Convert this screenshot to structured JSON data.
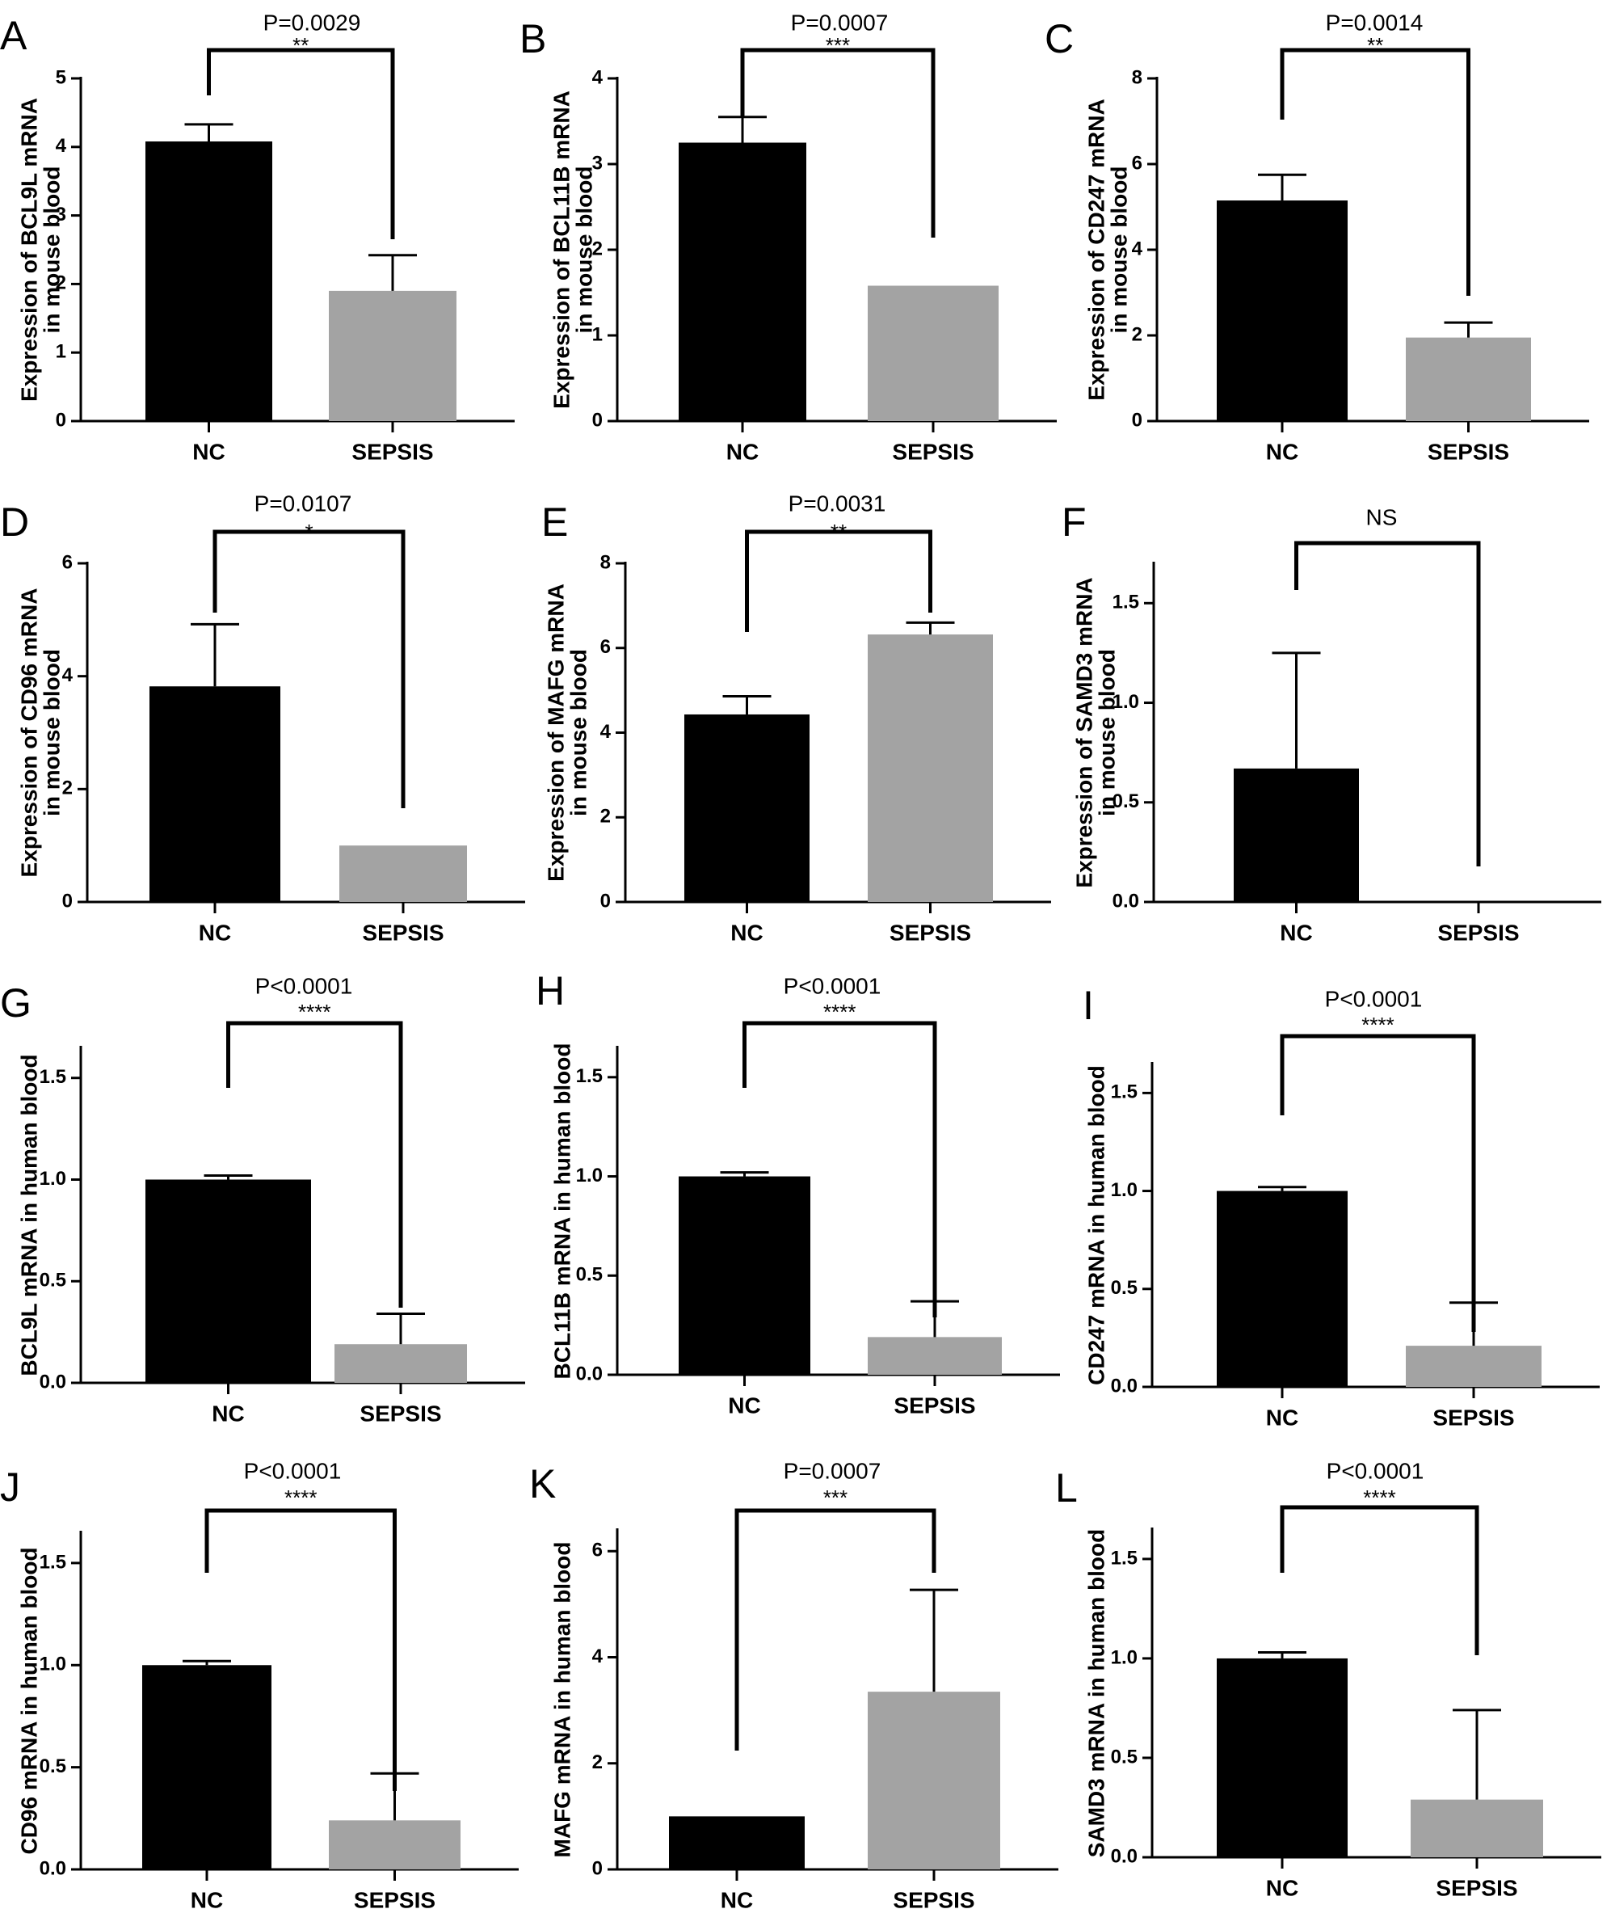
{
  "chart_data": [
    {
      "panel": "A",
      "type": "bar",
      "ylabel_lines": [
        "Expression of BCL9L mRNA",
        "in mouse blood"
      ],
      "categories": [
        "NC",
        "SEPSIS"
      ],
      "values": [
        4.08,
        1.9
      ],
      "errors": [
        0.25,
        0.52
      ],
      "ylim": [
        0,
        5
      ],
      "yticks": [
        "0",
        "1",
        "2",
        "3",
        "4",
        "5"
      ],
      "pvalue": "P=0.0029",
      "stars": "**",
      "colors": [
        "#000000",
        "#a3a3a3"
      ]
    },
    {
      "panel": "B",
      "type": "bar",
      "ylabel_lines": [
        "Expression of BCL11B mRNA",
        "in mouse blood"
      ],
      "categories": [
        "NC",
        "SEPSIS"
      ],
      "values": [
        3.25,
        1.58
      ],
      "errors": [
        0.3,
        0.0
      ],
      "ylim": [
        0,
        4
      ],
      "yticks": [
        "0",
        "1",
        "2",
        "3",
        "4"
      ],
      "pvalue": "P=0.0007",
      "stars": "***",
      "colors": [
        "#000000",
        "#a3a3a3"
      ]
    },
    {
      "panel": "C",
      "type": "bar",
      "ylabel_lines": [
        "Expression of CD247 mRNA",
        "in mouse blood"
      ],
      "categories": [
        "NC",
        "SEPSIS"
      ],
      "values": [
        5.15,
        1.95
      ],
      "errors": [
        0.6,
        0.35
      ],
      "ylim": [
        0,
        8
      ],
      "yticks": [
        "0",
        "2",
        "4",
        "6",
        "8"
      ],
      "pvalue": "P=0.0014",
      "stars": "**",
      "colors": [
        "#000000",
        "#a3a3a3"
      ]
    },
    {
      "panel": "D",
      "type": "bar",
      "ylabel_lines": [
        "Expression of CD96 mRNA",
        "in mouse blood"
      ],
      "categories": [
        "NC",
        "SEPSIS"
      ],
      "values": [
        3.82,
        1.0
      ],
      "errors": [
        1.1,
        0.0
      ],
      "ylim": [
        0,
        6
      ],
      "yticks": [
        "0",
        "2",
        "4",
        "6"
      ],
      "pvalue": "P=0.0107",
      "stars": "*",
      "colors": [
        "#000000",
        "#a3a3a3"
      ]
    },
    {
      "panel": "E",
      "type": "bar",
      "ylabel_lines": [
        "Expression of MAFG mRNA",
        "in mouse blood"
      ],
      "categories": [
        "NC",
        "SEPSIS"
      ],
      "values": [
        4.43,
        6.32
      ],
      "errors": [
        0.43,
        0.28
      ],
      "ylim": [
        0,
        8
      ],
      "yticks": [
        "0",
        "2",
        "4",
        "6",
        "8"
      ],
      "pvalue": "P=0.0031",
      "stars": "**",
      "colors": [
        "#000000",
        "#a3a3a3"
      ]
    },
    {
      "panel": "F",
      "type": "bar",
      "ylabel_lines": [
        "Expression of SAMD3 mRNA",
        "in mouse blood"
      ],
      "categories": [
        "NC",
        "SEPSIS"
      ],
      "values": [
        0.67,
        0.0
      ],
      "errors": [
        0.58,
        0.0
      ],
      "ylim": [
        0,
        1.7
      ],
      "yticks": [
        "0.0",
        "0.5",
        "1.0",
        "1.5"
      ],
      "pvalue": "NS",
      "stars": "",
      "colors": [
        "#000000",
        "#a3a3a3"
      ]
    },
    {
      "panel": "G",
      "type": "bar",
      "ylabel_lines": [
        "BCL9L mRNA in  human blood"
      ],
      "categories": [
        "NC",
        "SEPSIS"
      ],
      "values": [
        1.0,
        0.19
      ],
      "errors": [
        0.02,
        0.15
      ],
      "ylim": [
        0,
        1.65
      ],
      "yticks": [
        "0.0",
        "0.5",
        "1.0",
        "1.5"
      ],
      "pvalue": "P<0.0001",
      "stars": "****",
      "colors": [
        "#000000",
        "#a3a3a3"
      ]
    },
    {
      "panel": "H",
      "type": "bar",
      "ylabel_lines": [
        "BCL11B mRNA in  human blood"
      ],
      "categories": [
        "NC",
        "SEPSIS"
      ],
      "values": [
        1.0,
        0.19
      ],
      "errors": [
        0.02,
        0.18
      ],
      "ylim": [
        0,
        1.65
      ],
      "yticks": [
        "0.0",
        "0.5",
        "1.0",
        "1.5"
      ],
      "pvalue": "P<0.0001",
      "stars": "****",
      "colors": [
        "#000000",
        "#a3a3a3"
      ]
    },
    {
      "panel": "I",
      "type": "bar",
      "ylabel_lines": [
        "CD247 mRNA in  human blood"
      ],
      "categories": [
        "NC",
        "SEPSIS"
      ],
      "values": [
        1.0,
        0.21
      ],
      "errors": [
        0.02,
        0.22
      ],
      "ylim": [
        0,
        1.65
      ],
      "yticks": [
        "0.0",
        "0.5",
        "1.0",
        "1.5"
      ],
      "pvalue": "P<0.0001",
      "stars": "****",
      "colors": [
        "#000000",
        "#a3a3a3"
      ]
    },
    {
      "panel": "J",
      "type": "bar",
      "ylabel_lines": [
        "CD96 mRNA in  human blood"
      ],
      "categories": [
        "NC",
        "SEPSIS"
      ],
      "values": [
        1.0,
        0.24
      ],
      "errors": [
        0.02,
        0.23
      ],
      "ylim": [
        0,
        1.65
      ],
      "yticks": [
        "0.0",
        "0.5",
        "1.0",
        "1.5"
      ],
      "pvalue": "P<0.0001",
      "stars": "****",
      "colors": [
        "#000000",
        "#a3a3a3"
      ]
    },
    {
      "panel": "K",
      "type": "bar",
      "ylabel_lines": [
        "MAFG mRNA in  human blood"
      ],
      "categories": [
        "NC",
        "SEPSIS"
      ],
      "values": [
        1.0,
        3.35
      ],
      "errors": [
        0.0,
        1.92
      ],
      "ylim": [
        0,
        6.4
      ],
      "yticks": [
        "0",
        "2",
        "4",
        "6"
      ],
      "pvalue": "P=0.0007",
      "stars": "***",
      "colors": [
        "#000000",
        "#a3a3a3"
      ]
    },
    {
      "panel": "L",
      "type": "bar",
      "ylabel_lines": [
        "SAMD3 mRNA in  human blood"
      ],
      "categories": [
        "NC",
        "SEPSIS"
      ],
      "values": [
        1.0,
        0.29
      ],
      "errors": [
        0.03,
        0.45
      ],
      "ylim": [
        0,
        1.65
      ],
      "yticks": [
        "0.0",
        "0.5",
        "1.0",
        "1.5"
      ],
      "pvalue": "P<0.0001",
      "stars": "****",
      "colors": [
        "#000000",
        "#a3a3a3"
      ]
    }
  ]
}
